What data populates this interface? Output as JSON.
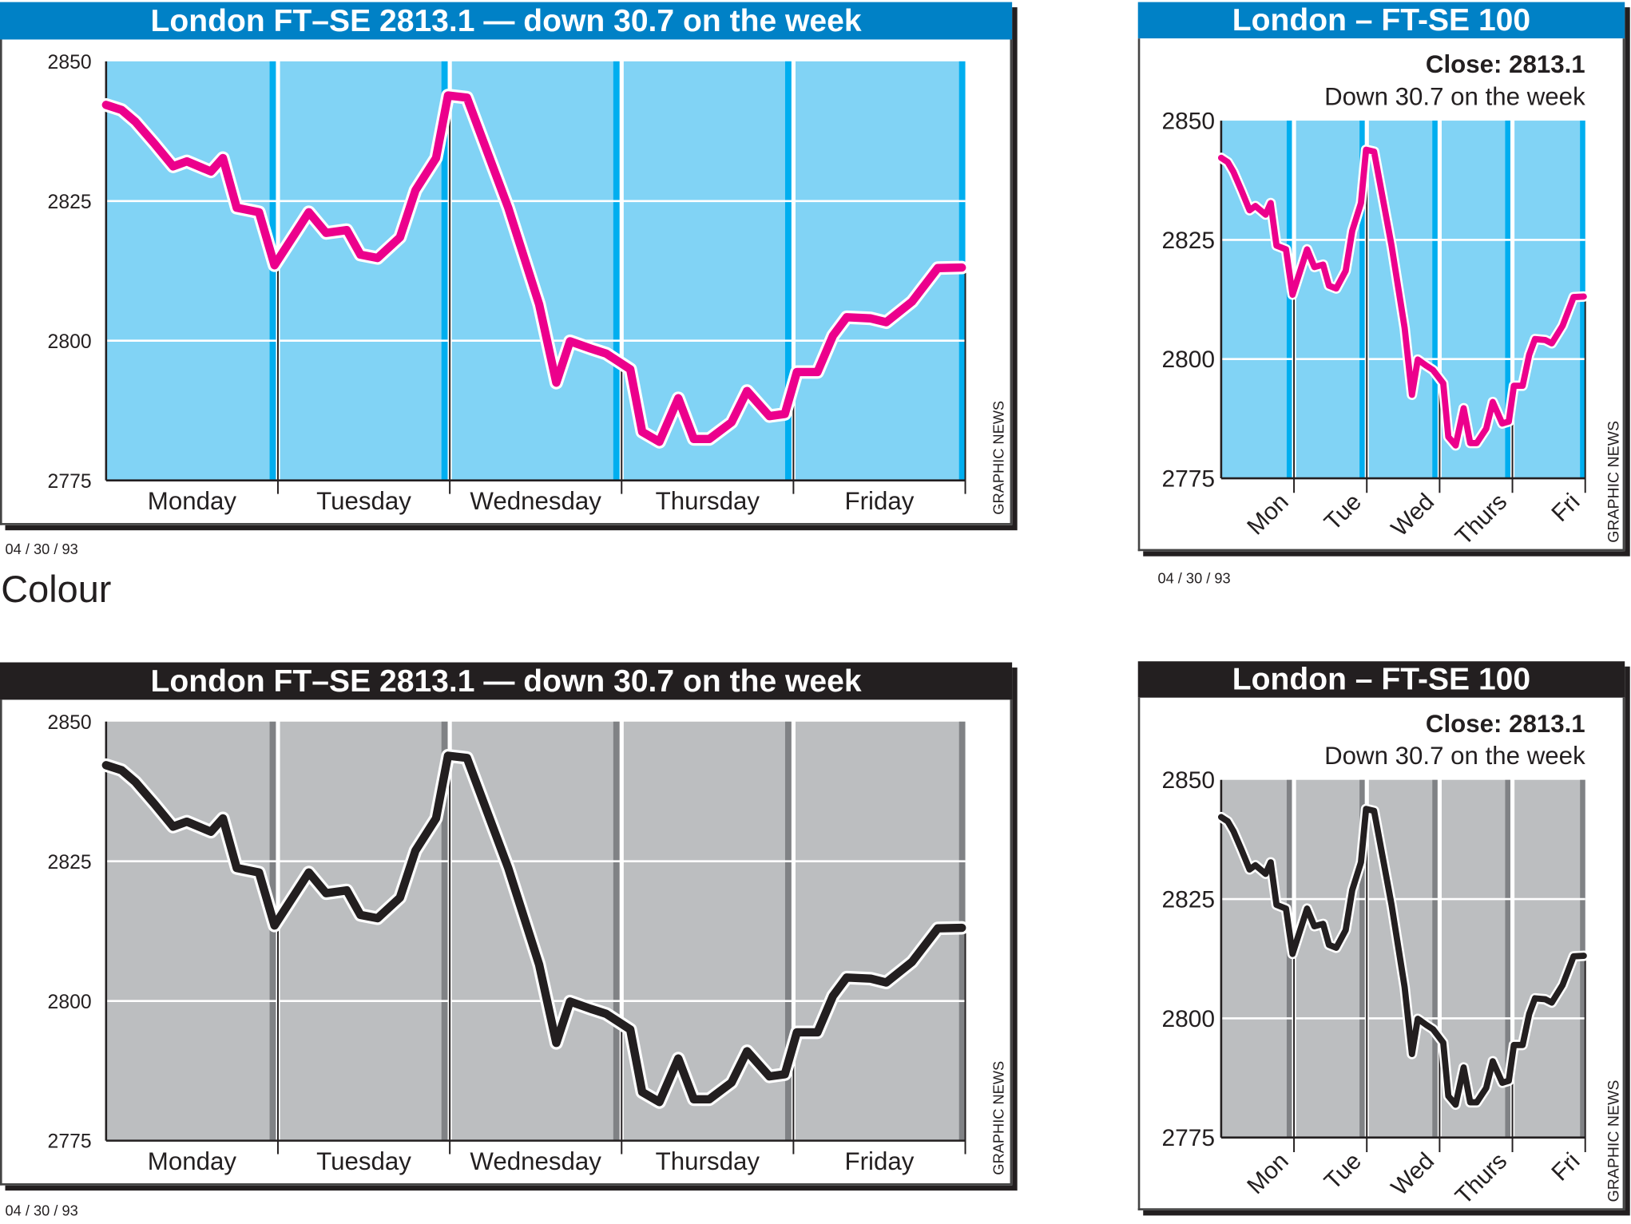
{
  "section_label": "Colour",
  "colors": {
    "colour_header": "#0081c6",
    "colour_bg": "#81d3f5",
    "colour_strip": "#00aeef",
    "colour_line": "#ec008c",
    "mono_header": "#231f20",
    "mono_bg": "#bcbec0",
    "mono_strip": "#808285",
    "mono_line": "#231f20"
  },
  "panels": [
    {
      "title": "London FT–SE 2813.1 — down 30.7 on the week",
      "date": "04 / 30 / 93",
      "credit": "GRAPHIC NEWS"
    },
    {
      "title": "London – FT-SE 100",
      "close": "Close: 2813.1",
      "subtitle": "Down 30.7 on the week",
      "date": "04 / 30 / 93",
      "credit": "GRAPHIC NEWS"
    },
    {
      "title": "London FT–SE 2813.1 — down 30.7 on the week",
      "date": "04 / 30 / 93",
      "credit": "GRAPHIC NEWS"
    },
    {
      "title": "London – FT-SE 100",
      "close": "Close: 2813.1",
      "subtitle": "Down 30.7 on the week",
      "credit": "GRAPHIC NEWS"
    }
  ],
  "chart_data": [
    {
      "type": "line",
      "title": "London FT–SE 2813.1 — down 30.7 on the week",
      "categories": [
        "Monday",
        "Tuesday",
        "Wednesday",
        "Thursday",
        "Friday"
      ],
      "yticks": [
        "2850",
        "2825",
        "2800",
        "2775"
      ],
      "ylim": [
        2775,
        2850
      ],
      "xlim": [
        0,
        5
      ],
      "grid": true,
      "series": [
        {
          "name": "FT-SE 100",
          "x": [
            0,
            0.09,
            0.17,
            0.28,
            0.39,
            0.47,
            0.61,
            0.68,
            0.76,
            0.89,
            0.98,
            1.18,
            1.28,
            1.4,
            1.48,
            1.58,
            1.71,
            1.8,
            1.92,
            1.99,
            2.1,
            2.34,
            2.52,
            2.62,
            2.7,
            2.82,
            2.91,
            3.05,
            3.12,
            3.22,
            3.33,
            3.42,
            3.51,
            3.64,
            3.73,
            3.86,
            3.95,
            4.02,
            4.14,
            4.23,
            4.31,
            4.45,
            4.54,
            4.69,
            4.84,
            4.98
          ],
          "y": [
            2842.2,
            2841.3,
            2839.2,
            2835.3,
            2831.2,
            2832.1,
            2830.3,
            2832.7,
            2823.8,
            2823.0,
            2813.5,
            2823.0,
            2819.3,
            2819.8,
            2815.4,
            2814.8,
            2818.5,
            2826.9,
            2832.7,
            2843.9,
            2843.5,
            2823.8,
            2806.5,
            2792.5,
            2799.9,
            2798.6,
            2797.7,
            2794.9,
            2783.7,
            2781.9,
            2789.7,
            2782.4,
            2782.4,
            2785.4,
            2791.0,
            2786.5,
            2786.9,
            2794.4,
            2794.4,
            2800.9,
            2804.2,
            2804.0,
            2803.3,
            2807.0,
            2813.0,
            2813.1
          ]
        }
      ]
    },
    {
      "type": "line",
      "title": "London – FT-SE 100",
      "subtitle": "Close: 2813.1 / Down 30.7 on the week",
      "categories": [
        "Mon",
        "Tue",
        "Wed",
        "Thurs",
        "Fri"
      ],
      "yticks": [
        "2850",
        "2825",
        "2800",
        "2775"
      ],
      "ylim": [
        2775,
        2850
      ],
      "xlim": [
        0,
        5
      ],
      "grid": true,
      "series": [
        {
          "name": "FT-SE 100",
          "x": [
            0,
            0.09,
            0.17,
            0.28,
            0.39,
            0.47,
            0.61,
            0.68,
            0.76,
            0.89,
            0.98,
            1.18,
            1.28,
            1.4,
            1.48,
            1.58,
            1.71,
            1.8,
            1.92,
            1.99,
            2.1,
            2.34,
            2.52,
            2.62,
            2.7,
            2.82,
            2.91,
            3.05,
            3.12,
            3.22,
            3.33,
            3.42,
            3.51,
            3.64,
            3.73,
            3.86,
            3.95,
            4.02,
            4.14,
            4.23,
            4.31,
            4.45,
            4.54,
            4.69,
            4.84,
            4.98
          ],
          "y": [
            2842.2,
            2841.3,
            2839.2,
            2835.3,
            2831.2,
            2832.1,
            2830.3,
            2832.7,
            2823.8,
            2823.0,
            2813.5,
            2823.0,
            2819.3,
            2819.8,
            2815.4,
            2814.8,
            2818.5,
            2826.9,
            2832.7,
            2843.9,
            2843.5,
            2823.8,
            2806.5,
            2792.5,
            2799.9,
            2798.6,
            2797.7,
            2794.9,
            2783.7,
            2781.9,
            2789.7,
            2782.4,
            2782.4,
            2785.4,
            2791.0,
            2786.5,
            2786.9,
            2794.4,
            2794.4,
            2800.9,
            2804.2,
            2804.0,
            2803.3,
            2807.0,
            2813.0,
            2813.1
          ]
        }
      ]
    },
    {
      "type": "line",
      "title": "London FT–SE 2813.1 — down 30.7 on the week",
      "categories": [
        "Monday",
        "Tuesday",
        "Wednesday",
        "Thursday",
        "Friday"
      ],
      "yticks": [
        "2850",
        "2825",
        "2800",
        "2775"
      ],
      "ylim": [
        2775,
        2850
      ],
      "xlim": [
        0,
        5
      ],
      "grid": true,
      "series": [
        {
          "name": "FT-SE 100",
          "x": [
            0,
            0.09,
            0.17,
            0.28,
            0.39,
            0.47,
            0.61,
            0.68,
            0.76,
            0.89,
            0.98,
            1.18,
            1.28,
            1.4,
            1.48,
            1.58,
            1.71,
            1.8,
            1.92,
            1.99,
            2.1,
            2.34,
            2.52,
            2.62,
            2.7,
            2.82,
            2.91,
            3.05,
            3.12,
            3.22,
            3.33,
            3.42,
            3.51,
            3.64,
            3.73,
            3.86,
            3.95,
            4.02,
            4.14,
            4.23,
            4.31,
            4.45,
            4.54,
            4.69,
            4.84,
            4.98
          ],
          "y": [
            2842.2,
            2841.3,
            2839.2,
            2835.3,
            2831.2,
            2832.1,
            2830.3,
            2832.7,
            2823.8,
            2823.0,
            2813.5,
            2823.0,
            2819.3,
            2819.8,
            2815.4,
            2814.8,
            2818.5,
            2826.9,
            2832.7,
            2843.9,
            2843.5,
            2823.8,
            2806.5,
            2792.5,
            2799.9,
            2798.6,
            2797.7,
            2794.9,
            2783.7,
            2781.9,
            2789.7,
            2782.4,
            2782.4,
            2785.4,
            2791.0,
            2786.5,
            2786.9,
            2794.4,
            2794.4,
            2800.9,
            2804.2,
            2804.0,
            2803.3,
            2807.0,
            2813.0,
            2813.1
          ]
        }
      ]
    },
    {
      "type": "line",
      "title": "London – FT-SE 100",
      "subtitle": "Close: 2813.1 / Down 30.7 on the week",
      "categories": [
        "Mon",
        "Tue",
        "Wed",
        "Thurs",
        "Fri"
      ],
      "yticks": [
        "2850",
        "2825",
        "2800",
        "2775"
      ],
      "ylim": [
        2775,
        2850
      ],
      "xlim": [
        0,
        5
      ],
      "grid": true,
      "series": [
        {
          "name": "FT-SE 100",
          "x": [
            0,
            0.09,
            0.17,
            0.28,
            0.39,
            0.47,
            0.61,
            0.68,
            0.76,
            0.89,
            0.98,
            1.18,
            1.28,
            1.4,
            1.48,
            1.58,
            1.71,
            1.8,
            1.92,
            1.99,
            2.1,
            2.34,
            2.52,
            2.62,
            2.7,
            2.82,
            2.91,
            3.05,
            3.12,
            3.22,
            3.33,
            3.42,
            3.51,
            3.64,
            3.73,
            3.86,
            3.95,
            4.02,
            4.14,
            4.23,
            4.31,
            4.45,
            4.54,
            4.69,
            4.84,
            4.98
          ],
          "y": [
            2842.2,
            2841.3,
            2839.2,
            2835.3,
            2831.2,
            2832.1,
            2830.3,
            2832.7,
            2823.8,
            2823.0,
            2813.5,
            2823.0,
            2819.3,
            2819.8,
            2815.4,
            2814.8,
            2818.5,
            2826.9,
            2832.7,
            2843.9,
            2843.5,
            2823.8,
            2806.5,
            2792.5,
            2799.9,
            2798.6,
            2797.7,
            2794.9,
            2783.7,
            2781.9,
            2789.7,
            2782.4,
            2782.4,
            2785.4,
            2791.0,
            2786.5,
            2786.9,
            2794.4,
            2794.4,
            2800.9,
            2804.2,
            2804.0,
            2803.3,
            2807.0,
            2813.0,
            2813.1
          ]
        }
      ]
    }
  ]
}
